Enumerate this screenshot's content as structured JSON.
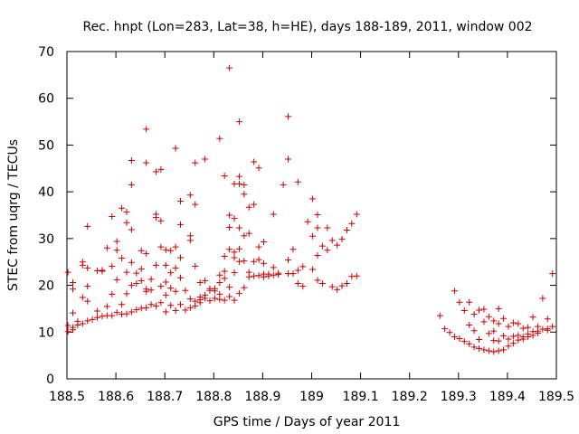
{
  "chart_data": {
    "type": "scatter",
    "title": "Rec. hnpt (Lon=283, Lat=38, h=HE), days 188-189, 2011, window 002",
    "xlabel": "GPS time / Days of year 2011",
    "ylabel": "STEC from uqrg / TECUs",
    "xlim": [
      188.5,
      189.5
    ],
    "ylim": [
      0,
      70
    ],
    "x_ticks": [
      188.5,
      188.6,
      188.7,
      188.8,
      188.9,
      189.0,
      189.1,
      189.2,
      189.3,
      189.4,
      189.5
    ],
    "x_tick_labels": [
      "188.5",
      "188.6",
      "188.7",
      "188.8",
      "188.9",
      "189",
      "189.1",
      "189.2",
      "189.3",
      "189.4",
      "189.5"
    ],
    "y_ticks": [
      0,
      10,
      20,
      30,
      40,
      50,
      60,
      70
    ],
    "y_tick_labels": [
      "0",
      "10",
      "20",
      "30",
      "40",
      "50",
      "60",
      "70"
    ],
    "grid": false,
    "marker": "+",
    "marker_color": "#cc0000",
    "points": [
      [
        188.502,
        22.8
      ],
      [
        188.502,
        11.4
      ],
      [
        188.502,
        10.1
      ],
      [
        188.512,
        20.6
      ],
      [
        188.512,
        19.2
      ],
      [
        188.512,
        14.1
      ],
      [
        188.512,
        11.0
      ],
      [
        188.512,
        10.5
      ],
      [
        188.522,
        12.3
      ],
      [
        188.522,
        11.5
      ],
      [
        188.532,
        25.0
      ],
      [
        188.532,
        24.3
      ],
      [
        188.532,
        17.4
      ],
      [
        188.532,
        11.8
      ],
      [
        188.542,
        32.6
      ],
      [
        188.542,
        23.7
      ],
      [
        188.542,
        19.8
      ],
      [
        188.542,
        16.6
      ],
      [
        188.542,
        12.4
      ],
      [
        188.552,
        12.7
      ],
      [
        188.562,
        23.1
      ],
      [
        188.562,
        14.5
      ],
      [
        188.562,
        13.1
      ],
      [
        188.572,
        23.2
      ],
      [
        188.572,
        23.0
      ],
      [
        188.572,
        13.4
      ],
      [
        188.582,
        28.0
      ],
      [
        188.582,
        15.5
      ],
      [
        188.582,
        13.5
      ],
      [
        188.592,
        34.7
      ],
      [
        188.592,
        24.1
      ],
      [
        188.592,
        18.1
      ],
      [
        188.592,
        13.5
      ],
      [
        188.602,
        29.4
      ],
      [
        188.602,
        27.5
      ],
      [
        188.602,
        21.2
      ],
      [
        188.602,
        14.2
      ],
      [
        188.612,
        36.5
      ],
      [
        188.612,
        25.8
      ],
      [
        188.612,
        15.9
      ],
      [
        188.612,
        13.8
      ],
      [
        188.622,
        35.7
      ],
      [
        188.622,
        33.4
      ],
      [
        188.622,
        22.8
      ],
      [
        188.622,
        18.2
      ],
      [
        188.622,
        13.9
      ],
      [
        188.632,
        46.7
      ],
      [
        188.632,
        41.5
      ],
      [
        188.632,
        31.9
      ],
      [
        188.632,
        24.9
      ],
      [
        188.632,
        20.0
      ],
      [
        188.632,
        14.3
      ],
      [
        188.642,
        22.6
      ],
      [
        188.642,
        20.4
      ],
      [
        188.642,
        14.8
      ],
      [
        188.652,
        27.4
      ],
      [
        188.652,
        23.5
      ],
      [
        188.652,
        21.0
      ],
      [
        188.652,
        15.1
      ],
      [
        188.662,
        53.4
      ],
      [
        188.662,
        46.2
      ],
      [
        188.662,
        26.8
      ],
      [
        188.662,
        19.2
      ],
      [
        188.662,
        18.7
      ],
      [
        188.662,
        15.2
      ],
      [
        188.672,
        21.3
      ],
      [
        188.672,
        19.0
      ],
      [
        188.672,
        15.9
      ],
      [
        188.682,
        44.3
      ],
      [
        188.682,
        35.2
      ],
      [
        188.682,
        34.5
      ],
      [
        188.682,
        24.3
      ],
      [
        188.682,
        15.6
      ],
      [
        188.692,
        44.8
      ],
      [
        188.692,
        33.8
      ],
      [
        188.692,
        28.2
      ],
      [
        188.692,
        19.8
      ],
      [
        188.692,
        16.3
      ],
      [
        188.702,
        27.6
      ],
      [
        188.702,
        24.3
      ],
      [
        188.702,
        20.7
      ],
      [
        188.702,
        17.9
      ],
      [
        188.702,
        14.3
      ],
      [
        188.712,
        27.4
      ],
      [
        188.712,
        22.7
      ],
      [
        188.712,
        19.4
      ],
      [
        188.712,
        15.7
      ],
      [
        188.722,
        49.3
      ],
      [
        188.722,
        28.2
      ],
      [
        188.722,
        23.7
      ],
      [
        188.722,
        18.7
      ],
      [
        188.722,
        14.6
      ],
      [
        188.732,
        38.0
      ],
      [
        188.732,
        33.0
      ],
      [
        188.732,
        25.9
      ],
      [
        188.732,
        21.6
      ],
      [
        188.732,
        15.9
      ],
      [
        188.742,
        18.9
      ],
      [
        188.742,
        14.7
      ],
      [
        188.752,
        39.3
      ],
      [
        188.752,
        30.6
      ],
      [
        188.752,
        29.6
      ],
      [
        188.752,
        17.1
      ],
      [
        188.752,
        15.2
      ],
      [
        188.762,
        46.2
      ],
      [
        188.762,
        37.3
      ],
      [
        188.762,
        24.1
      ],
      [
        188.762,
        16.6
      ],
      [
        188.762,
        15.6
      ],
      [
        188.772,
        20.6
      ],
      [
        188.772,
        17.5
      ],
      [
        188.772,
        16.9
      ],
      [
        188.772,
        16.3
      ],
      [
        188.782,
        47.0
      ],
      [
        188.782,
        21.0
      ],
      [
        188.782,
        17.9
      ],
      [
        188.782,
        17.2
      ],
      [
        188.792,
        19.3
      ],
      [
        188.792,
        18.9
      ],
      [
        188.792,
        16.7
      ],
      [
        188.802,
        19.3
      ],
      [
        188.802,
        18.8
      ],
      [
        188.802,
        17.2
      ],
      [
        188.812,
        51.4
      ],
      [
        188.812,
        22.2
      ],
      [
        188.812,
        20.6
      ],
      [
        188.812,
        18.1
      ],
      [
        188.812,
        17.0
      ],
      [
        188.822,
        43.4
      ],
      [
        188.822,
        26.2
      ],
      [
        188.822,
        23.0
      ],
      [
        188.822,
        21.5
      ],
      [
        188.822,
        16.8
      ],
      [
        188.832,
        66.5
      ],
      [
        188.832,
        35.0
      ],
      [
        188.832,
        32.4
      ],
      [
        188.832,
        27.7
      ],
      [
        188.832,
        19.6
      ],
      [
        188.832,
        17.6
      ],
      [
        188.842,
        41.7
      ],
      [
        188.842,
        34.3
      ],
      [
        188.842,
        27.1
      ],
      [
        188.842,
        25.9
      ],
      [
        188.842,
        22.7
      ],
      [
        188.842,
        16.8
      ],
      [
        188.852,
        55.0
      ],
      [
        188.852,
        43.3
      ],
      [
        188.852,
        41.7
      ],
      [
        188.852,
        32.3
      ],
      [
        188.852,
        27.8
      ],
      [
        188.852,
        25.1
      ],
      [
        188.852,
        18.3
      ],
      [
        188.862,
        41.5
      ],
      [
        188.862,
        39.5
      ],
      [
        188.862,
        30.6
      ],
      [
        188.862,
        25.2
      ],
      [
        188.862,
        19.5
      ],
      [
        188.872,
        36.7
      ],
      [
        188.872,
        31.1
      ],
      [
        188.872,
        22.8
      ],
      [
        188.872,
        21.8
      ],
      [
        188.882,
        46.4
      ],
      [
        188.882,
        37.3
      ],
      [
        188.882,
        25.1
      ],
      [
        188.882,
        22.0
      ],
      [
        188.892,
        45.1
      ],
      [
        188.892,
        28.2
      ],
      [
        188.892,
        25.5
      ],
      [
        188.892,
        22.1
      ],
      [
        188.902,
        29.3
      ],
      [
        188.902,
        24.7
      ],
      [
        188.902,
        22.4
      ],
      [
        188.902,
        21.8
      ],
      [
        188.912,
        22.4
      ],
      [
        188.912,
        22.0
      ],
      [
        188.922,
        35.2
      ],
      [
        188.922,
        23.8
      ],
      [
        188.922,
        22.2
      ],
      [
        188.932,
        22.6
      ],
      [
        188.932,
        22.3
      ],
      [
        188.942,
        41.5
      ],
      [
        188.952,
        56.1
      ],
      [
        188.952,
        47.0
      ],
      [
        188.952,
        25.4
      ],
      [
        188.952,
        22.5
      ],
      [
        188.962,
        27.7
      ],
      [
        188.962,
        22.5
      ],
      [
        188.972,
        42.1
      ],
      [
        188.972,
        23.2
      ],
      [
        188.972,
        20.4
      ],
      [
        188.982,
        24.0
      ],
      [
        188.982,
        19.8
      ],
      [
        188.992,
        33.6
      ],
      [
        189.002,
        38.5
      ],
      [
        189.002,
        30.5
      ],
      [
        189.002,
        23.4
      ],
      [
        189.012,
        35.1
      ],
      [
        189.012,
        32.3
      ],
      [
        189.012,
        26.4
      ],
      [
        189.012,
        21.1
      ],
      [
        189.022,
        28.4
      ],
      [
        189.022,
        20.4
      ],
      [
        189.032,
        32.3
      ],
      [
        189.032,
        27.5
      ],
      [
        189.042,
        29.6
      ],
      [
        189.042,
        19.7
      ],
      [
        189.052,
        28.6
      ],
      [
        189.052,
        19.1
      ],
      [
        189.062,
        29.9
      ],
      [
        189.062,
        19.9
      ],
      [
        189.072,
        31.8
      ],
      [
        189.072,
        20.4
      ],
      [
        189.082,
        33.2
      ],
      [
        189.082,
        21.9
      ],
      [
        189.092,
        35.2
      ],
      [
        189.092,
        22.0
      ],
      [
        189.262,
        13.5
      ],
      [
        189.272,
        10.7
      ],
      [
        189.282,
        9.9
      ],
      [
        189.292,
        18.8
      ],
      [
        189.292,
        9.0
      ],
      [
        189.302,
        16.4
      ],
      [
        189.302,
        8.6
      ],
      [
        189.312,
        14.6
      ],
      [
        189.312,
        8.0
      ],
      [
        189.322,
        16.4
      ],
      [
        189.322,
        11.5
      ],
      [
        189.322,
        7.5
      ],
      [
        189.332,
        13.8
      ],
      [
        189.332,
        10.3
      ],
      [
        189.332,
        6.8
      ],
      [
        189.342,
        14.7
      ],
      [
        189.342,
        8.4
      ],
      [
        189.342,
        6.5
      ],
      [
        189.352,
        14.9
      ],
      [
        189.352,
        12.2
      ],
      [
        189.352,
        6.2
      ],
      [
        189.362,
        13.3
      ],
      [
        189.362,
        9.7
      ],
      [
        189.362,
        6.0
      ],
      [
        189.372,
        12.4
      ],
      [
        189.372,
        10.2
      ],
      [
        189.372,
        8.2
      ],
      [
        189.372,
        5.8
      ],
      [
        189.382,
        15.0
      ],
      [
        189.382,
        11.8
      ],
      [
        189.382,
        8.1
      ],
      [
        189.382,
        6.0
      ],
      [
        189.392,
        12.9
      ],
      [
        189.392,
        9.2
      ],
      [
        189.392,
        6.2
      ],
      [
        189.402,
        11.2
      ],
      [
        189.402,
        8.5
      ],
      [
        189.402,
        7.0
      ],
      [
        189.412,
        12.0
      ],
      [
        189.412,
        9.1
      ],
      [
        189.412,
        7.6
      ],
      [
        189.422,
        11.8
      ],
      [
        189.422,
        9.3
      ],
      [
        189.422,
        8.3
      ],
      [
        189.432,
        10.8
      ],
      [
        189.432,
        9.0
      ],
      [
        189.432,
        8.5
      ],
      [
        189.442,
        11.0
      ],
      [
        189.442,
        9.6
      ],
      [
        189.442,
        9.0
      ],
      [
        189.452,
        13.2
      ],
      [
        189.452,
        10.1
      ],
      [
        189.452,
        9.3
      ],
      [
        189.462,
        11.2
      ],
      [
        189.462,
        10.2
      ],
      [
        189.462,
        9.8
      ],
      [
        189.472,
        17.2
      ],
      [
        189.472,
        10.6
      ],
      [
        189.482,
        12.8
      ],
      [
        189.482,
        10.7
      ],
      [
        189.482,
        10.4
      ],
      [
        189.492,
        22.5
      ],
      [
        189.492,
        11.2
      ]
    ]
  }
}
